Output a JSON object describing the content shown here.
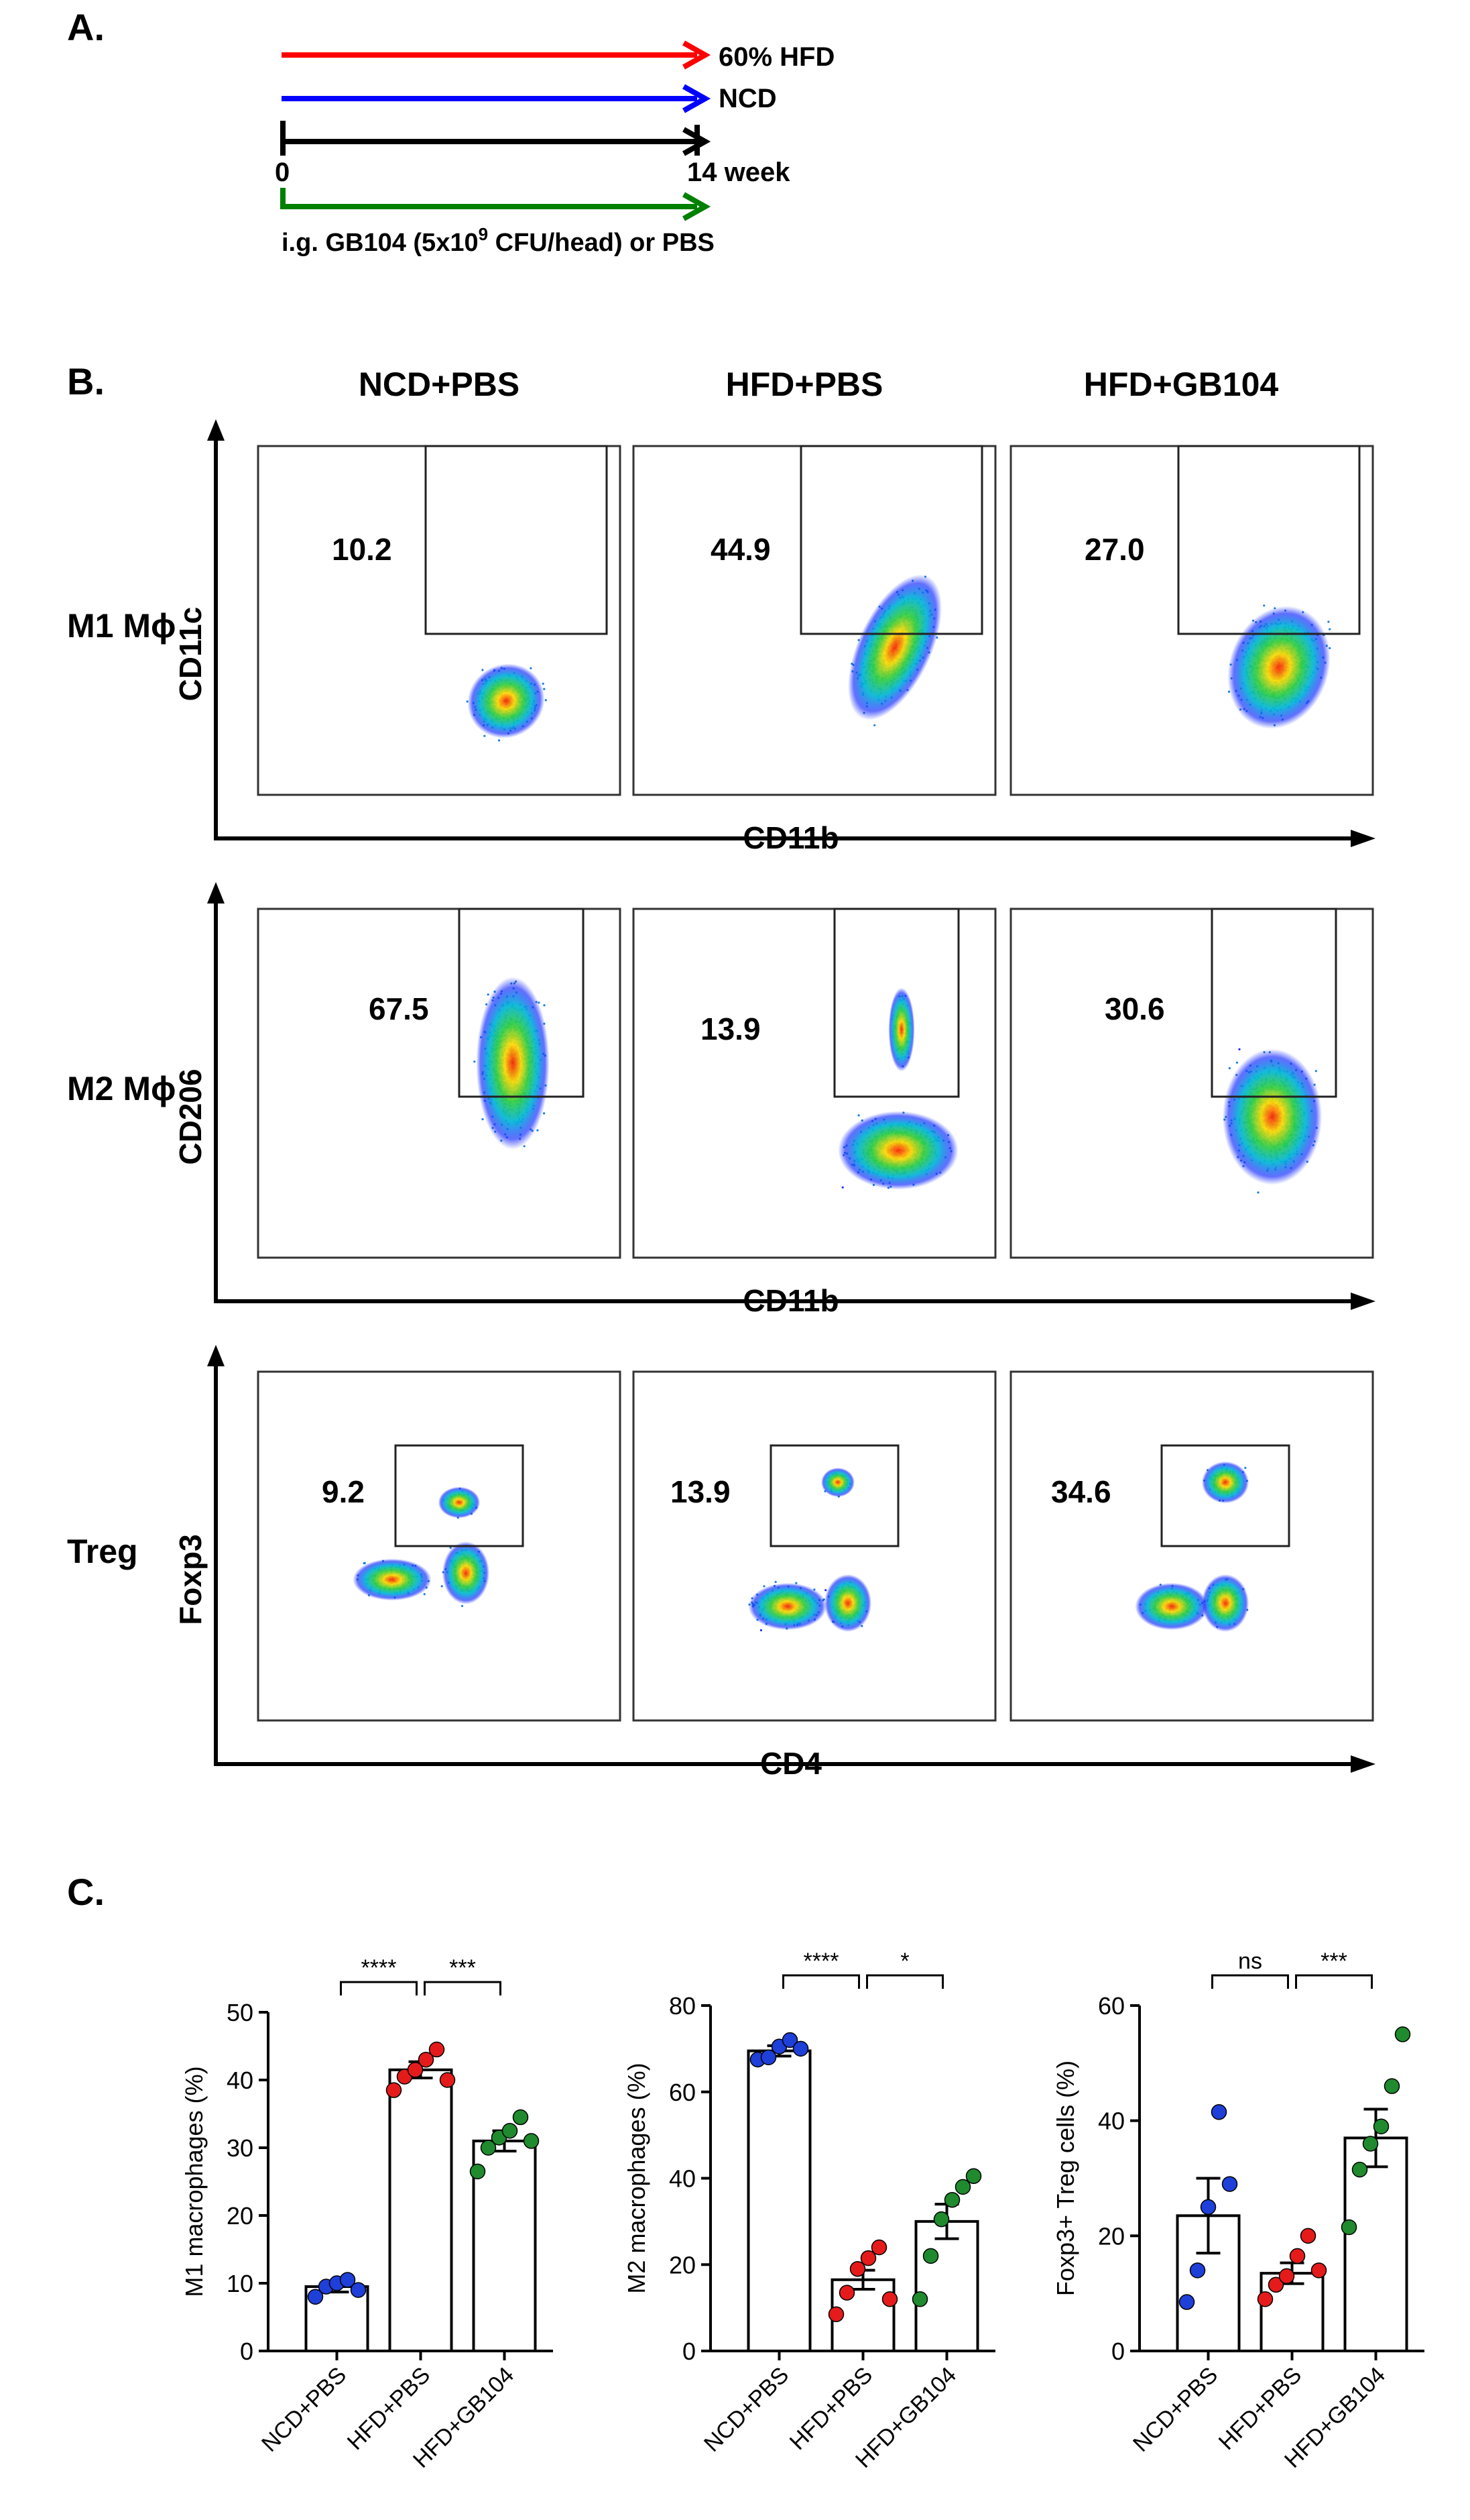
{
  "panelA": {
    "label": "A.",
    "timeline": [
      {
        "name": "60% HFD",
        "color": "#ff0000"
      },
      {
        "name": "NCD",
        "color": "#0000ff"
      }
    ],
    "axis_start": "0",
    "axis_end": "14 week",
    "treatment": {
      "prefix": "i.g. GB104 (5x10",
      "sup": "9",
      "suffix": " CFU/head) or PBS",
      "color": "#008000"
    }
  },
  "panelB": {
    "label": "B.",
    "groups": [
      "NCD+PBS",
      "HFD+PBS",
      "HFD+GB104"
    ],
    "rows": [
      {
        "row_label": "M1 Mϕ",
        "y_axis": "CD11c",
        "x_axis": "CD11b",
        "values": [
          "10.2",
          "44.9",
          "27.0"
        ]
      },
      {
        "row_label": "M2 Mϕ",
        "y_axis": "CD206",
        "x_axis": "CD11b",
        "values": [
          "67.5",
          "13.9",
          "30.6"
        ]
      },
      {
        "row_label": "Treg",
        "y_axis": "Foxp3",
        "x_axis": "CD4",
        "values": [
          "9.2",
          "13.9",
          "34.6"
        ]
      }
    ]
  },
  "panelC": {
    "label": "C."
  },
  "chart_data": [
    {
      "type": "bar",
      "ylabel": "M1 macrophages (%)",
      "ylim": [
        0,
        50
      ],
      "yticks": [
        0,
        10,
        20,
        30,
        40,
        50
      ],
      "categories": [
        "NCD+PBS",
        "HFD+PBS",
        "HFD+GB104"
      ],
      "values": [
        9.5,
        41.5,
        31.0
      ],
      "errors": [
        0.8,
        1.2,
        1.5
      ],
      "points": [
        [
          8.0,
          9.5,
          10.0,
          10.5,
          9.0
        ],
        [
          38.5,
          40.5,
          41.5,
          43.0,
          44.5,
          40.0
        ],
        [
          26.5,
          30.0,
          31.5,
          32.5,
          34.5,
          31.0
        ]
      ],
      "point_colors": [
        "#1f3fd9",
        "#e51b1b",
        "#1f8a2e"
      ],
      "comparisons": [
        {
          "from": 0,
          "to": 1,
          "label": "****"
        },
        {
          "from": 1,
          "to": 2,
          "label": "***"
        }
      ]
    },
    {
      "type": "bar",
      "ylabel": "M2 macrophages (%)",
      "ylim": [
        0,
        80
      ],
      "yticks": [
        0,
        20,
        40,
        60,
        80
      ],
      "categories": [
        "NCD+PBS",
        "HFD+PBS",
        "HFD+GB104"
      ],
      "values": [
        69.5,
        16.5,
        30.0
      ],
      "errors": [
        1.2,
        2.2,
        4.0
      ],
      "points": [
        [
          67.5,
          68.0,
          70.5,
          72.0,
          70.0
        ],
        [
          8.5,
          13.5,
          19.0,
          21.5,
          24.0,
          12.0
        ],
        [
          12.0,
          22.0,
          30.5,
          35.0,
          38.0,
          40.5
        ]
      ],
      "point_colors": [
        "#1f3fd9",
        "#e51b1b",
        "#1f8a2e"
      ],
      "comparisons": [
        {
          "from": 0,
          "to": 1,
          "label": "****"
        },
        {
          "from": 1,
          "to": 2,
          "label": "*"
        }
      ]
    },
    {
      "type": "bar",
      "ylabel": "Foxp3+ Treg cells (%)",
      "ylim": [
        0,
        60
      ],
      "yticks": [
        0,
        20,
        40,
        60
      ],
      "categories": [
        "NCD+PBS",
        "HFD+PBS",
        "HFD+GB104"
      ],
      "values": [
        23.5,
        13.5,
        37.0
      ],
      "errors": [
        6.5,
        1.8,
        5.0
      ],
      "points": [
        [
          8.5,
          14.0,
          25.0,
          41.5,
          29.0
        ],
        [
          9.0,
          11.5,
          13.0,
          16.5,
          20.0,
          14.0
        ],
        [
          21.5,
          31.5,
          36.0,
          39.0,
          46.0,
          55.0
        ]
      ],
      "point_colors": [
        "#1f3fd9",
        "#e51b1b",
        "#1f8a2e"
      ],
      "comparisons": [
        {
          "from": 0,
          "to": 1,
          "label": "ns"
        },
        {
          "from": 1,
          "to": 2,
          "label": "***"
        }
      ]
    }
  ]
}
